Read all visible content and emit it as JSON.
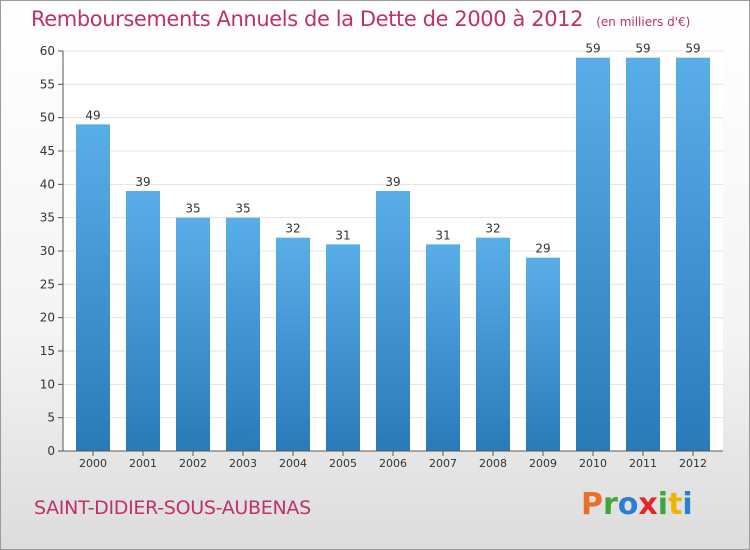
{
  "title": "Remboursements Annuels de la Dette de 2000 à 2012",
  "unit": "(en milliers d'€)",
  "commune": "SAINT-DIDIER-SOUS-AUBENAS",
  "logo": {
    "letters": [
      "P",
      "r",
      "o",
      "x",
      "i",
      "t",
      "i"
    ],
    "colors": [
      "#e8702a",
      "#3ca53c",
      "#2a7fd4",
      "#e2262a",
      "#3ca53c",
      "#f0b400",
      "#2a7fd4"
    ]
  },
  "colors": {
    "bar_top": "#5aaee8",
    "bar_bottom": "#2a7ab8",
    "text": "#c0306a",
    "grid": "#e3e3e3",
    "axis": "#555555"
  },
  "chart_data": {
    "type": "bar",
    "categories": [
      "2000",
      "2001",
      "2002",
      "2003",
      "2004",
      "2005",
      "2006",
      "2007",
      "2008",
      "2009",
      "2010",
      "2011",
      "2012"
    ],
    "values": [
      49,
      39,
      35,
      35,
      32,
      31,
      39,
      31,
      32,
      29,
      59,
      59,
      59
    ],
    "ylim": [
      0,
      60
    ],
    "yticks": [
      0,
      5,
      10,
      15,
      20,
      25,
      30,
      35,
      40,
      45,
      50,
      55,
      60
    ],
    "grid": true,
    "data_labels": true
  }
}
